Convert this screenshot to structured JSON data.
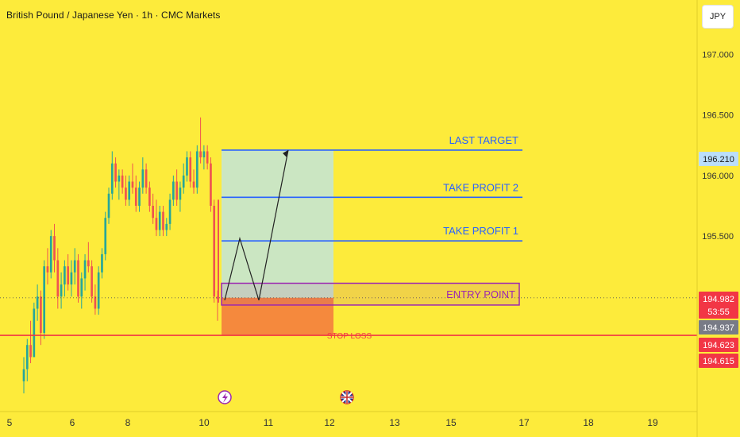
{
  "header": {
    "title": "British Pound / Japanese Yen · 1h · CMC Markets",
    "currency_button": "JPY"
  },
  "colors": {
    "background": "#fdeb3b",
    "candle_up": "#26a69a",
    "candle_down": "#ef5350",
    "target_line": "#2962ff",
    "stop_line": "#f23645",
    "profit_zone": "#c8e6c9",
    "loss_zone": "#f5893d",
    "entry_box": "#9c27b0"
  },
  "chart_data": {
    "type": "candlestick",
    "x_tick_labels": [
      "5",
      "6",
      "8",
      "10",
      "11",
      "12",
      "13",
      "15",
      "17",
      "18",
      "19"
    ],
    "y_tick_labels": [
      "197.000",
      "196.500",
      "196.000",
      "195.500"
    ],
    "ylim": [
      194.05,
      197.45
    ],
    "levels": [
      {
        "label": "LAST TARGET",
        "price": 196.21
      },
      {
        "label": "TAKE PROFIT 2",
        "price": 195.82
      },
      {
        "label": "TAKE PROFIT 1",
        "price": 195.46
      },
      {
        "label": "ENTRY POINT",
        "price": 194.99
      },
      {
        "label": "STOP LOSS",
        "price": 194.68
      }
    ],
    "price_badges": [
      {
        "value": "196.210",
        "style": "target"
      },
      {
        "value": "194.982",
        "style": "current"
      },
      {
        "value": "53:55",
        "style": "countdown"
      },
      {
        "value": "194.937",
        "style": "neutral"
      },
      {
        "value": "194.623",
        "style": "stop"
      },
      {
        "value": "194.615",
        "style": "stop"
      }
    ],
    "projection_path": [
      194.97,
      195.48,
      194.97,
      196.21
    ],
    "candles": [
      [
        194.3,
        194.5,
        194.2,
        194.4
      ],
      [
        194.4,
        194.65,
        194.3,
        194.6
      ],
      [
        194.6,
        194.8,
        194.45,
        194.5
      ],
      [
        194.5,
        194.95,
        194.5,
        194.9
      ],
      [
        194.9,
        195.1,
        194.8,
        195.0
      ],
      [
        195.0,
        195.05,
        194.6,
        194.7
      ],
      [
        194.7,
        195.3,
        194.65,
        195.25
      ],
      [
        195.25,
        195.4,
        195.1,
        195.2
      ],
      [
        195.2,
        195.55,
        195.15,
        195.5
      ],
      [
        195.5,
        195.6,
        195.2,
        195.3
      ],
      [
        195.3,
        195.4,
        194.9,
        195.0
      ],
      [
        195.0,
        195.2,
        194.9,
        195.1
      ],
      [
        195.1,
        195.3,
        195.0,
        195.25
      ],
      [
        195.25,
        195.35,
        195.05,
        195.1
      ],
      [
        195.1,
        195.3,
        195.0,
        195.2
      ],
      [
        195.2,
        195.4,
        195.1,
        195.3
      ],
      [
        195.3,
        195.35,
        194.95,
        195.0
      ],
      [
        195.0,
        195.2,
        194.9,
        195.15
      ],
      [
        195.15,
        195.35,
        195.05,
        195.3
      ],
      [
        195.3,
        195.45,
        195.2,
        195.25
      ],
      [
        195.25,
        195.3,
        194.95,
        195.0
      ],
      [
        195.0,
        195.1,
        194.85,
        194.9
      ],
      [
        194.9,
        195.25,
        194.85,
        195.2
      ],
      [
        195.2,
        195.4,
        195.15,
        195.35
      ],
      [
        195.35,
        195.7,
        195.3,
        195.65
      ],
      [
        195.65,
        195.9,
        195.6,
        195.85
      ],
      [
        195.85,
        196.2,
        195.8,
        196.1
      ],
      [
        196.1,
        196.15,
        195.9,
        195.95
      ],
      [
        195.95,
        196.05,
        195.8,
        196.0
      ],
      [
        196.0,
        196.05,
        195.85,
        195.9
      ],
      [
        195.9,
        196.0,
        195.75,
        195.8
      ],
      [
        195.8,
        196.0,
        195.75,
        195.95
      ],
      [
        195.95,
        196.1,
        195.85,
        195.9
      ],
      [
        195.9,
        196.0,
        195.7,
        195.75
      ],
      [
        195.75,
        195.95,
        195.7,
        195.9
      ],
      [
        195.9,
        196.15,
        195.85,
        196.05
      ],
      [
        196.05,
        196.1,
        195.85,
        195.9
      ],
      [
        195.9,
        195.95,
        195.7,
        195.75
      ],
      [
        195.75,
        195.85,
        195.6,
        195.65
      ],
      [
        195.65,
        195.8,
        195.5,
        195.55
      ],
      [
        195.55,
        195.75,
        195.5,
        195.7
      ],
      [
        195.7,
        195.75,
        195.5,
        195.55
      ],
      [
        195.55,
        195.65,
        195.5,
        195.6
      ],
      [
        195.6,
        195.85,
        195.55,
        195.8
      ],
      [
        195.8,
        196.0,
        195.75,
        195.95
      ],
      [
        195.95,
        196.05,
        195.75,
        195.8
      ],
      [
        195.8,
        195.95,
        195.7,
        195.9
      ],
      [
        195.9,
        196.1,
        195.85,
        196.0
      ],
      [
        196.0,
        196.2,
        195.95,
        196.15
      ],
      [
        196.15,
        196.2,
        195.9,
        195.95
      ],
      [
        195.95,
        196.05,
        195.85,
        195.9
      ],
      [
        195.9,
        196.25,
        195.85,
        196.2
      ],
      [
        196.2,
        196.48,
        196.1,
        196.15
      ],
      [
        196.15,
        196.25,
        196.05,
        196.2
      ],
      [
        196.2,
        196.25,
        196.05,
        196.1
      ],
      [
        196.1,
        196.15,
        195.7,
        195.75
      ],
      [
        195.75,
        195.8,
        194.95,
        195.0
      ],
      [
        195.0,
        195.05,
        194.8,
        194.98
      ]
    ]
  }
}
